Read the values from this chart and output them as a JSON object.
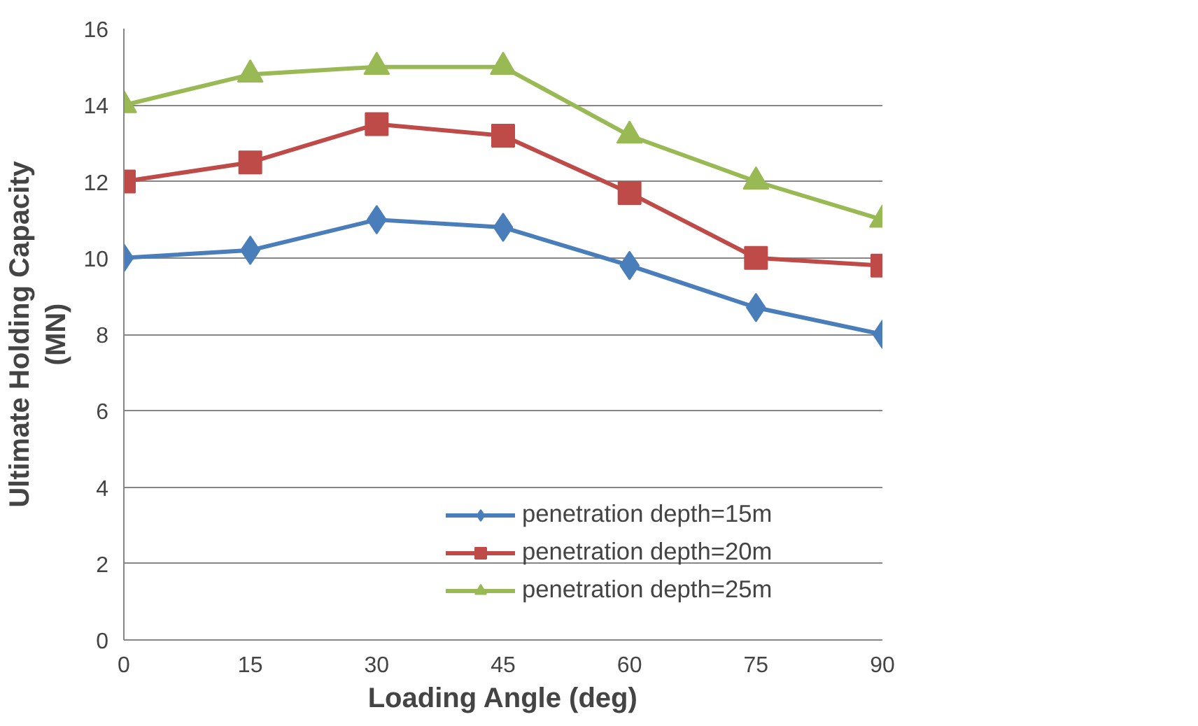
{
  "chart_data": {
    "type": "line",
    "xlabel": "Loading Angle (deg)",
    "ylabel": "Ultimate Holding Capacity\n(MN)",
    "x": [
      0,
      15,
      30,
      45,
      60,
      75,
      90
    ],
    "xlim": [
      0,
      90
    ],
    "xticks": [
      0,
      15,
      30,
      45,
      60,
      75,
      90
    ],
    "ylim": [
      0,
      16
    ],
    "yticks": [
      0,
      2,
      4,
      6,
      8,
      10,
      12,
      14,
      16
    ],
    "grid": "y",
    "legend": "bottom",
    "line_style": "solid",
    "series": [
      {
        "name": "penetration depth=15m",
        "color": "#4a7ebb",
        "marker": "diamond",
        "values": [
          10,
          10.2,
          11,
          10.8,
          9.8,
          8.7,
          8
        ]
      },
      {
        "name": "penetration depth=20m",
        "color": "#be4b48",
        "marker": "square",
        "values": [
          12,
          12.5,
          13.5,
          13.2,
          11.7,
          10,
          9.8
        ]
      },
      {
        "name": "penetration depth=25m",
        "color": "#98b954",
        "marker": "triangle",
        "values": [
          14,
          14.8,
          15,
          15,
          13.2,
          12,
          11
        ]
      }
    ]
  }
}
